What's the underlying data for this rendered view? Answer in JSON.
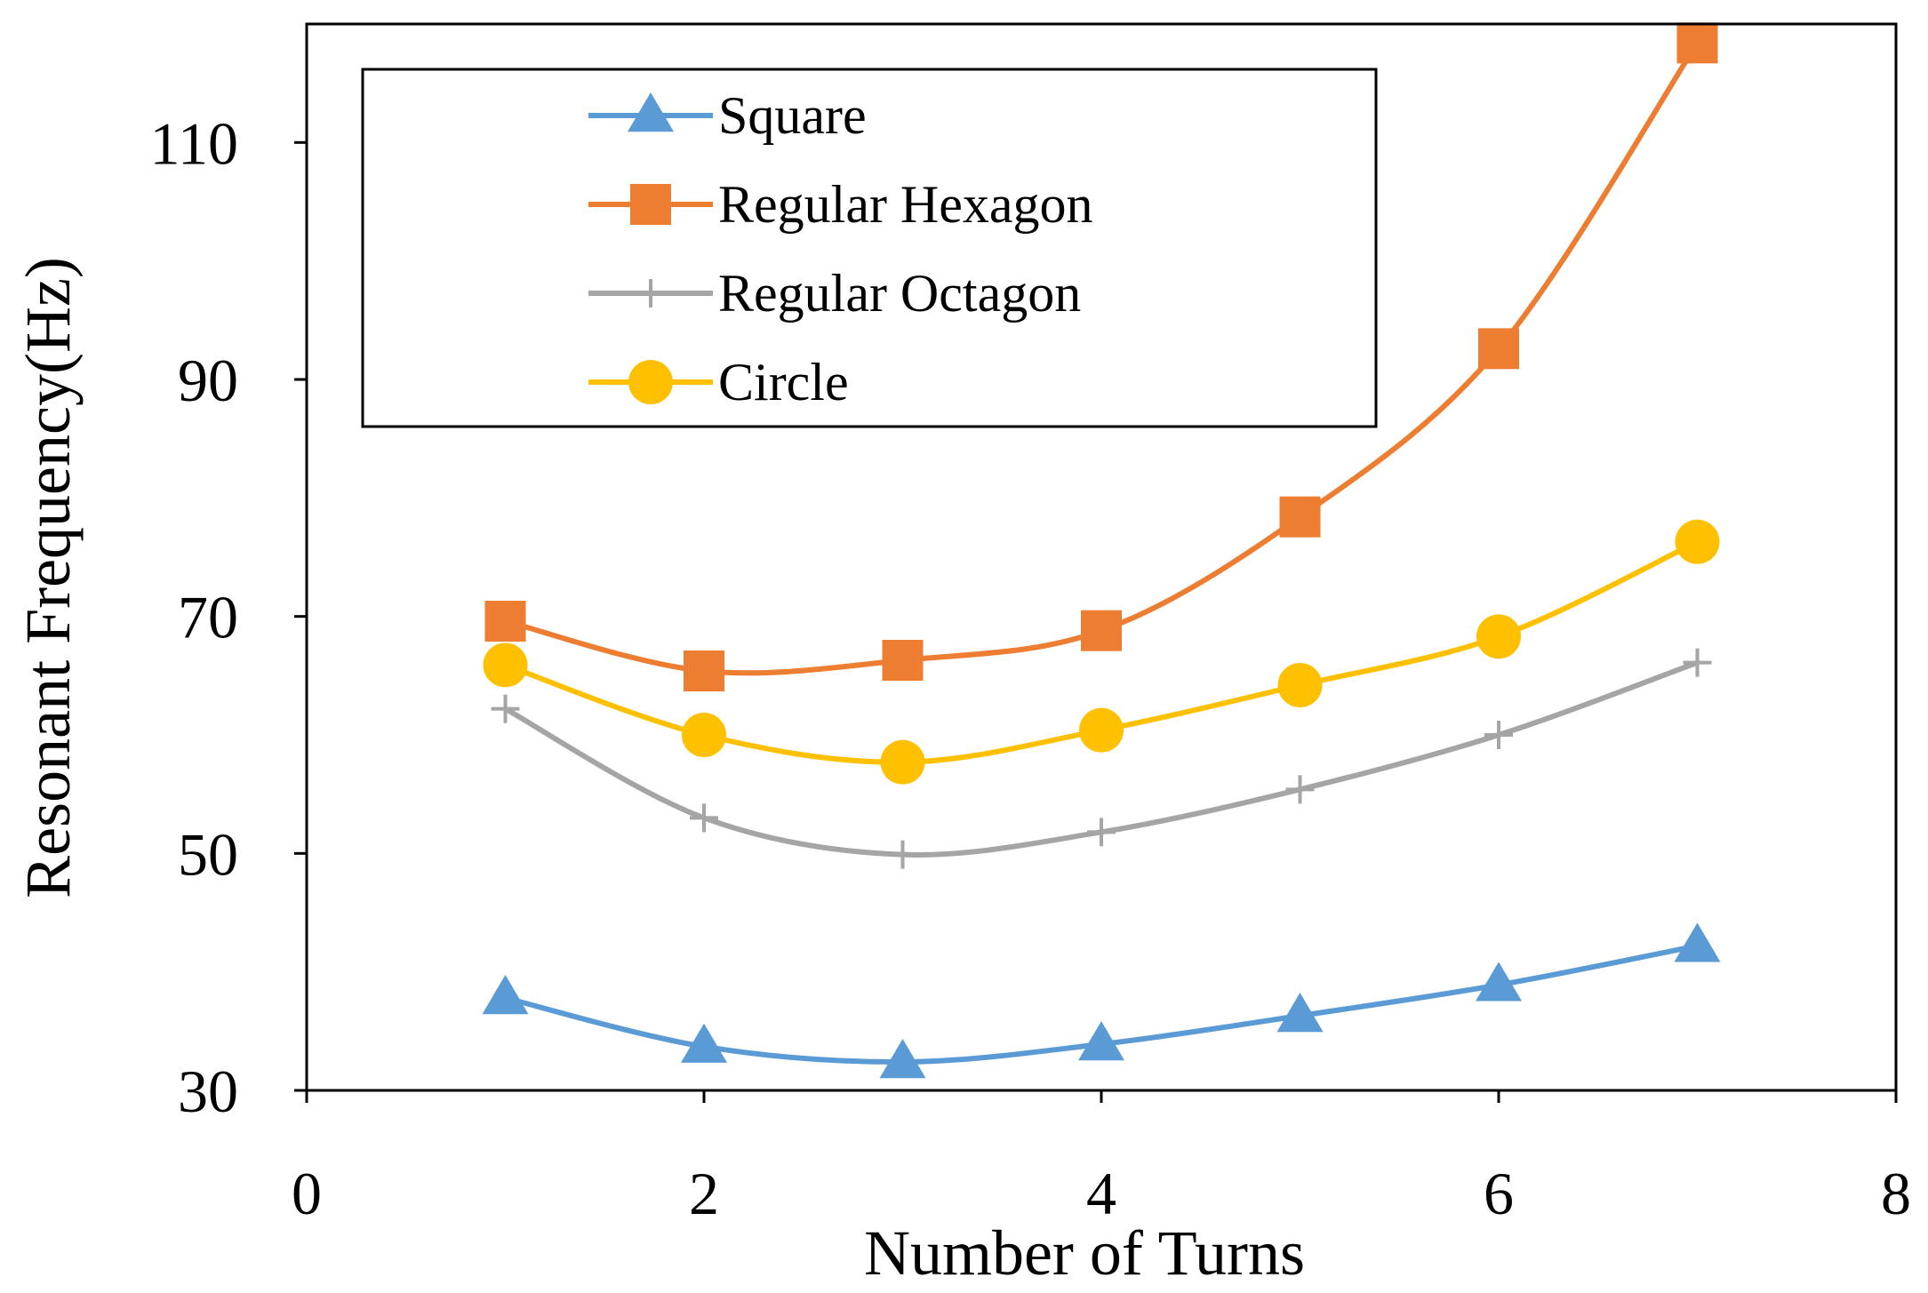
{
  "chart_data": {
    "type": "line",
    "title": "",
    "xlabel": "Number of Turns",
    "ylabel": "Resonant Frequency(Hz)",
    "xlim": [
      0,
      8
    ],
    "ylim": [
      30,
      120
    ],
    "xticks": [
      0,
      2,
      4,
      6,
      8
    ],
    "yticks": [
      30,
      50,
      70,
      90,
      110
    ],
    "xtick_labels": [
      "0",
      "2",
      "4",
      "6",
      "8"
    ],
    "ytick_labels": [
      "30",
      "50",
      "70",
      "90",
      "110"
    ],
    "grid": false,
    "smooth": true,
    "legend_position": "top-left",
    "x": [
      1,
      2,
      3,
      4,
      5,
      6,
      7
    ],
    "series": [
      {
        "name": "Square",
        "color": "#5B9BD5",
        "marker": "triangle",
        "values": [
          37.8,
          33.7,
          32.4,
          33.9,
          36.3,
          38.9,
          42.2
        ]
      },
      {
        "name": "Regular Hexagon",
        "color": "#ED7D31",
        "marker": "square",
        "values": [
          69.6,
          65.4,
          66.3,
          68.8,
          78.4,
          92.6,
          118.4
        ]
      },
      {
        "name": "Regular Octagon",
        "color": "#A5A5A5",
        "marker": "plus",
        "values": [
          62.2,
          53.0,
          49.9,
          51.8,
          55.4,
          60.0,
          66.1
        ]
      },
      {
        "name": "Circle",
        "color": "#FFC000",
        "marker": "circle",
        "values": [
          65.9,
          60.0,
          57.7,
          60.4,
          64.2,
          68.3,
          76.3
        ]
      }
    ]
  }
}
